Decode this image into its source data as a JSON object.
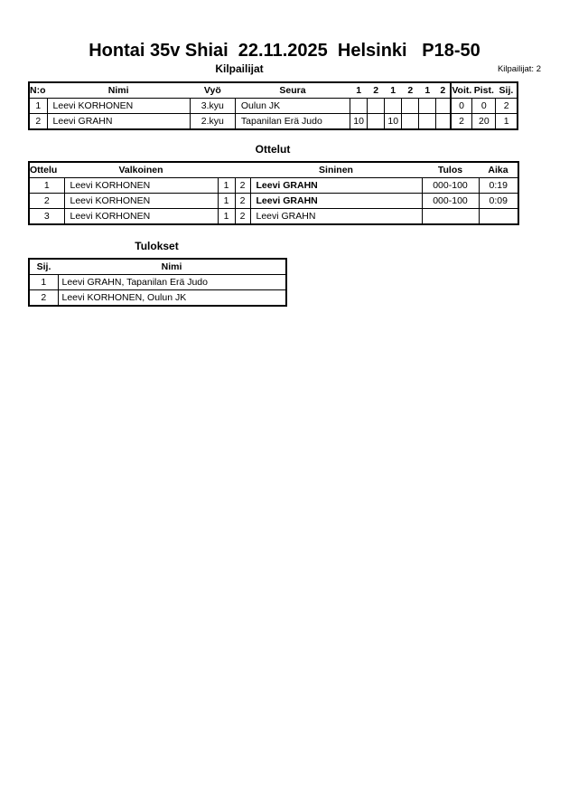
{
  "title": "Hontai 35v Shiai  22.11.2025  Helsinki   P18-50",
  "competitors": {
    "heading": "Kilpailijat",
    "count_label": "Kilpailijat: 2",
    "headers": {
      "no": "N:o",
      "name": "Nimi",
      "belt": "Vyö",
      "club": "Seura",
      "rounds": [
        "1",
        "2",
        "1",
        "2",
        "1",
        "2"
      ],
      "wins": "Voit.",
      "points": "Pist.",
      "rank": "Sij."
    },
    "rows": [
      {
        "no": "1",
        "name": "Leevi KORHONEN",
        "belt": "3.kyu",
        "club": "Oulun JK",
        "scores": [
          "",
          "",
          "",
          "",
          "",
          ""
        ],
        "wins": "0",
        "points": "0",
        "rank": "2"
      },
      {
        "no": "2",
        "name": "Leevi GRAHN",
        "belt": "2.kyu",
        "club": "Tapanilan Erä Judo",
        "scores": [
          "10",
          "",
          "10",
          "",
          "",
          ""
        ],
        "wins": "2",
        "points": "20",
        "rank": "1"
      }
    ]
  },
  "matches": {
    "heading": "Ottelut",
    "headers": {
      "match": "Ottelu",
      "white": "Valkoinen",
      "blue": "Sininen",
      "result": "Tulos",
      "time": "Aika"
    },
    "rows": [
      {
        "match": "1",
        "white": "Leevi KORHONEN",
        "w": "1",
        "b": "2",
        "blue": "Leevi GRAHN",
        "blue_winner": true,
        "result": "000-100",
        "time": "0:19"
      },
      {
        "match": "2",
        "white": "Leevi KORHONEN",
        "w": "1",
        "b": "2",
        "blue": "Leevi GRAHN",
        "blue_winner": true,
        "result": "000-100",
        "time": "0:09"
      },
      {
        "match": "3",
        "white": "Leevi KORHONEN",
        "w": "1",
        "b": "2",
        "blue": "Leevi GRAHN",
        "blue_winner": false,
        "result": "",
        "time": ""
      }
    ]
  },
  "results": {
    "heading": "Tulokset",
    "headers": {
      "rank": "Sij.",
      "name": "Nimi"
    },
    "rows": [
      {
        "rank": "1",
        "name": "Leevi GRAHN, Tapanilan Erä Judo"
      },
      {
        "rank": "2",
        "name": "Leevi KORHONEN, Oulun JK"
      }
    ]
  }
}
